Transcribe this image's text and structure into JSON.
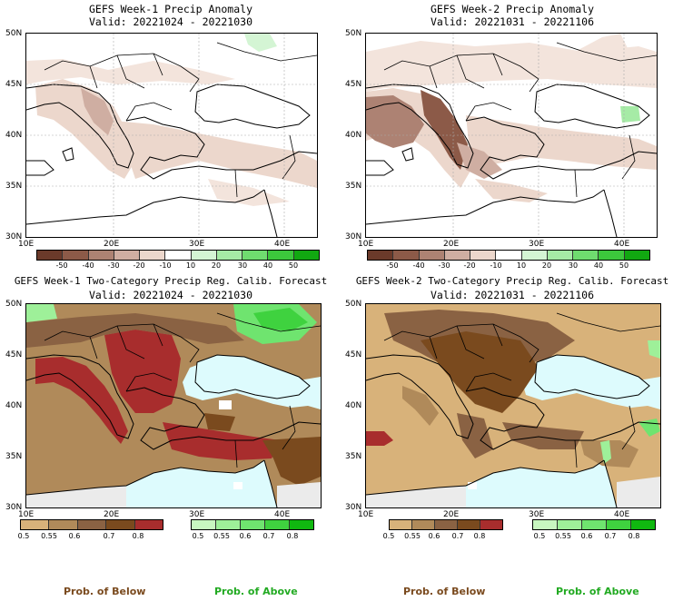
{
  "panels": [
    {
      "title": "GEFS Week-1 Precip Anomaly",
      "valid": "Valid: 20221024 - 20221030",
      "type": "anomaly",
      "lat_labels": [
        "50N",
        "45N",
        "40N",
        "35N",
        "30N"
      ],
      "lon_labels": [
        "10E",
        "20E",
        "30E",
        "40E"
      ],
      "colorbar_ticks": [
        "-50",
        "-40",
        "-30",
        "-20",
        "-10",
        "10",
        "20",
        "30",
        "40",
        "50"
      ]
    },
    {
      "title": "GEFS Week-2 Precip Anomaly",
      "valid": "Valid: 20221031 - 20221106",
      "type": "anomaly",
      "lat_labels": [
        "50N",
        "45N",
        "40N",
        "35N",
        "30N"
      ],
      "lon_labels": [
        "10E",
        "20E",
        "30E",
        "40E"
      ],
      "colorbar_ticks": [
        "-50",
        "-40",
        "-30",
        "-20",
        "-10",
        "10",
        "20",
        "30",
        "40",
        "50"
      ]
    },
    {
      "title": "GEFS Week-1 Two-Category Precip Reg. Calib. Forecast",
      "valid": "Valid: 20221024 - 20221030",
      "type": "probability",
      "lat_labels": [
        "50N",
        "45N",
        "40N",
        "35N",
        "30N"
      ],
      "lon_labels": [
        "10E",
        "20E",
        "30E",
        "40E"
      ],
      "below_ticks": [
        "0.5",
        "0.55",
        "0.6",
        "0.7",
        "0.8"
      ],
      "above_ticks": [
        "0.5",
        "0.55",
        "0.6",
        "0.7",
        "0.8"
      ]
    },
    {
      "title": "GEFS Week-2 Two-Category Precip Reg. Calib. Forecast",
      "valid": "Valid: 20221031 - 20221106",
      "type": "probability",
      "lat_labels": [
        "50N",
        "45N",
        "40N",
        "35N",
        "30N"
      ],
      "lon_labels": [
        "10E",
        "20E",
        "30E",
        "40E"
      ],
      "below_ticks": [
        "0.5",
        "0.55",
        "0.6",
        "0.7",
        "0.8"
      ],
      "above_ticks": [
        "0.5",
        "0.55",
        "0.6",
        "0.7",
        "0.8"
      ]
    }
  ],
  "footer": {
    "prob_below": "Prob. of Below",
    "prob_above": "Prob. of Above"
  },
  "colors": {
    "anomaly_scale": [
      "#6b3a2a",
      "#8c5a48",
      "#ad8273",
      "#cfaea2",
      "#ecd7cc",
      "#ffffff",
      "#d4f5d4",
      "#a6eba6",
      "#6fdc6f",
      "#3cc83c",
      "#11a811"
    ],
    "below_scale": [
      "#d8b27a",
      "#b08a5a",
      "#8a6243",
      "#7a4a1e",
      "#a82d2d"
    ],
    "above_scale": [
      "#c8f7c0",
      "#9ef099",
      "#6fe46f",
      "#3fd23f",
      "#10b810"
    ],
    "ocean": "#ddfbfd",
    "no_data": "#ebebeb",
    "prob_below_text": "#7a4a1e",
    "prob_above_text": "#22aa22"
  }
}
